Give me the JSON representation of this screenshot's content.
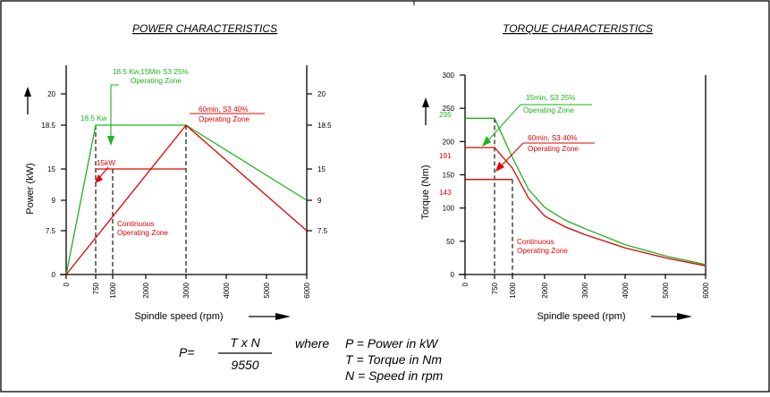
{
  "power_title": "POWER CHARACTERISTICS",
  "torque_title": "TORQUE CHARACTERISTICS",
  "power_ylabel": "Power (kW)",
  "torque_ylabel": "Torque (Nm)",
  "xlabel": "Spindle speed (rpm)",
  "power_notes": {
    "s3_25_title": "18.5 Kw,15Min S3 25%",
    "s3_25_sub": "Operating Zone",
    "peak_value": "18.5 Kw",
    "s3_40_title": "60min, S3 40%",
    "s3_40_sub": "Operating Zone",
    "cont_value": "15kW",
    "cont_title": "Continuous",
    "cont_sub": "Operating Zone"
  },
  "torque_notes": {
    "s3_25_title": "15min, S3 25%",
    "s3_25_sub": "Operating Zone",
    "s3_40_title": "60min, S3 40%",
    "s3_40_sub": "Operating Zone",
    "cont_title": "Continuous",
    "cont_sub": "Operating Zone",
    "label_235": "235",
    "label_191": "191",
    "label_143": "143"
  },
  "formula": {
    "lhs": "P=",
    "numerator": "T x N",
    "denominator": "9550",
    "where": "where",
    "l1": "P = Power in kW",
    "l2": "T = Torque in Nm",
    "l3": "N = Speed in rpm"
  },
  "colors": {
    "s3_25": "#1db31d",
    "s3_40": "#e00000",
    "axis": "#000000"
  },
  "chart_data": [
    {
      "type": "line",
      "title": "POWER CHARACTERISTICS",
      "xlabel": "Spindle speed (rpm)",
      "ylabel": "Power (kW)",
      "x_ticks": [
        0,
        750,
        1000,
        2000,
        3000,
        4000,
        5000,
        6000
      ],
      "y_ticks": [
        0,
        7.5,
        9,
        15,
        18.5,
        20
      ],
      "xlim": [
        0,
        6000
      ],
      "ylim": [
        0,
        22
      ],
      "series": [
        {
          "name": "18.5 Kw,15Min S3 25%",
          "color": "#1db31d",
          "x": [
            0,
            750,
            3000,
            6000
          ],
          "y": [
            0,
            18.5,
            18.5,
            9
          ]
        },
        {
          "name": "60min, S3 40%",
          "color": "#e00000",
          "x": [
            0,
            3000,
            6000
          ],
          "y": [
            0,
            18.5,
            7.5
          ]
        },
        {
          "name": "Continuous",
          "color": "#e00000",
          "x": [
            750,
            3000
          ],
          "y": [
            15,
            15
          ]
        }
      ]
    },
    {
      "type": "line",
      "title": "TORQUE CHARACTERISTICS",
      "xlabel": "Spindle speed (rpm)",
      "ylabel": "Torque (Nm)",
      "x_ticks": [
        0,
        750,
        1000,
        2000,
        3000,
        4000,
        5000,
        6000
      ],
      "y_ticks": [
        0,
        50,
        100,
        150,
        200,
        250,
        300
      ],
      "xlim": [
        0,
        6000
      ],
      "ylim": [
        0,
        300
      ],
      "series": [
        {
          "name": "15min, S3 25%",
          "color": "#1db31d",
          "x": [
            0,
            750,
            1000,
            1500,
            2000,
            2500,
            3000,
            4000,
            5000,
            6000
          ],
          "y": [
            235,
            235,
            176,
            128,
            101,
            82,
            69,
            45,
            28,
            15
          ]
        },
        {
          "name": "60min, S3 40%",
          "color": "#e00000",
          "x": [
            0,
            750,
            1000,
            1500,
            2000,
            2500,
            3000,
            4000,
            5000,
            6000
          ],
          "y": [
            191,
            191,
            160,
            115,
            88,
            72,
            60,
            40,
            25,
            13
          ]
        },
        {
          "name": "Continuous",
          "color": "#e00000",
          "x": [
            0,
            1000
          ],
          "y": [
            143,
            143
          ]
        }
      ]
    }
  ]
}
